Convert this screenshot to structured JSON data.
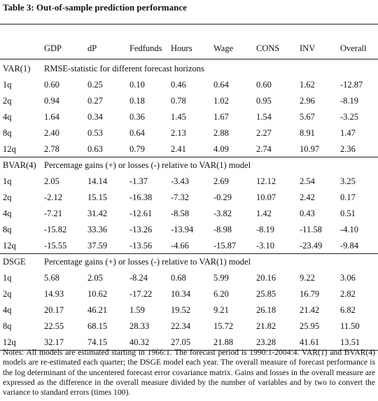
{
  "title": "Table 3: Out-of-sample prediction performance",
  "columns": [
    "GDP",
    "dP",
    "Fedfunds",
    "Hours",
    "Wage",
    "CONS",
    "INV",
    "Overall"
  ],
  "sections": [
    {
      "name": "VAR(1)",
      "description": "RMSE-statistic for different forecast horizons",
      "rows": [
        {
          "label": "1q",
          "values": [
            "0.60",
            "0.25",
            "0.10",
            "0.46",
            "0.64",
            "0.60",
            "1.62",
            "-12.87"
          ]
        },
        {
          "label": "2q",
          "values": [
            "0.94",
            "0.27",
            "0.18",
            "0.78",
            "1.02",
            "0.95",
            "2.96",
            "-8.19"
          ]
        },
        {
          "label": "4q",
          "values": [
            "1.64",
            "0.34",
            "0.36",
            "1.45",
            "1.67",
            "1.54",
            "5.67",
            "-3.25"
          ]
        },
        {
          "label": "8q",
          "values": [
            "2.40",
            "0.53",
            "0.64",
            "2.13",
            "2.88",
            "2.27",
            "8.91",
            "1.47"
          ]
        },
        {
          "label": "12q",
          "values": [
            "2.78",
            "0.63",
            "0.79",
            "2.41",
            "4.09",
            "2.74",
            "10.97",
            "2.36"
          ]
        }
      ]
    },
    {
      "name": "BVAR(4)",
      "description": "Percentage gains (+) or losses (-) relative to VAR(1) model",
      "rows": [
        {
          "label": "1q",
          "values": [
            "2.05",
            "14.14",
            "-1.37",
            "-3.43",
            "2.69",
            "12.12",
            "2.54",
            "3.25"
          ]
        },
        {
          "label": "2q",
          "values": [
            "-2.12",
            "15.15",
            "-16.38",
            "-7.32",
            "-0.29",
            "10.07",
            "2.42",
            "0.17"
          ]
        },
        {
          "label": "4q",
          "values": [
            "-7.21",
            "31.42",
            "-12.61",
            "-8.58",
            "-3.82",
            "1.42",
            "0.43",
            "0.51"
          ]
        },
        {
          "label": "8q",
          "values": [
            "-15.82",
            "33.36",
            "-13.26",
            "-13.94",
            "-8.98",
            "-8.19",
            "-11.58",
            "-4.10"
          ]
        },
        {
          "label": "12q",
          "values": [
            "-15.55",
            "37.59",
            "-13.56",
            "-4.66",
            "-15.87",
            "-3.10",
            "-23.49",
            "-9.84"
          ]
        }
      ]
    },
    {
      "name": "DSGE",
      "description": "Percentage gains (+) or losses (-) relative to VAR(1) model",
      "rows": [
        {
          "label": "1q",
          "values": [
            "5.68",
            "2.05",
            "-8.24",
            "0.68",
            "5.99",
            "20.16",
            "9.22",
            "3.06"
          ]
        },
        {
          "label": "2q",
          "values": [
            "14.93",
            "10.62",
            "-17.22",
            "10.34",
            "6.20",
            "25.85",
            "16.79",
            "2.82"
          ]
        },
        {
          "label": "4q",
          "values": [
            "20.17",
            "46.21",
            "1.59",
            "19.52",
            "9.21",
            "26.18",
            "21.42",
            "6.82"
          ]
        },
        {
          "label": "8q",
          "values": [
            "22.55",
            "68.15",
            "28.33",
            "22.34",
            "15.72",
            "21.82",
            "25.95",
            "11.50"
          ]
        },
        {
          "label": "12q",
          "values": [
            "32.17",
            "74.15",
            "40.32",
            "27.05",
            "21.88",
            "23.28",
            "41.61",
            "13.51"
          ]
        }
      ]
    }
  ],
  "notes": "Notes: All models are estimated starting in 1966:1. The forecast period is 1990:1-2004:4. VAR(1) and BVAR(4) models are re-estimated each quarter; the DSGE model each year. The overall measure of forecast performance is the log determinant of the uncentered forecast error covariance matrix. Gains and losses in the overall measure are expressed as the difference in the overall measure divided by the number of variables and by two to convert the variance to standard errors (times 100)."
}
